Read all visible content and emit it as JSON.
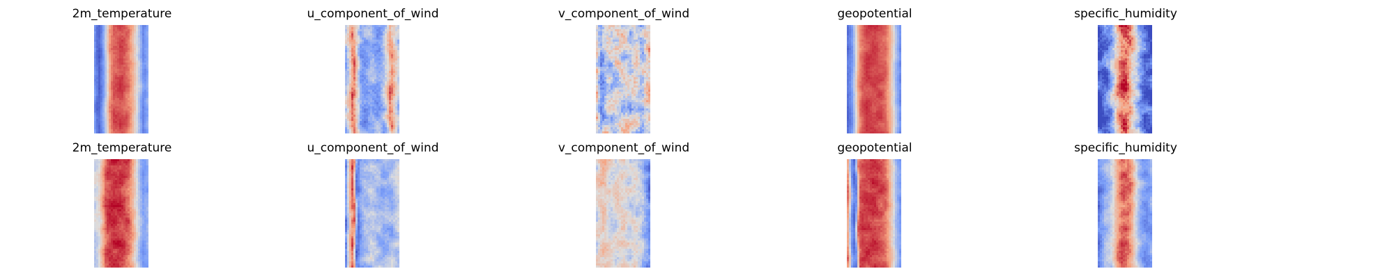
{
  "chart_data": [
    {
      "type": "heatmap",
      "title": "2m_temperature",
      "colormap": "coolwarm",
      "axes": "off",
      "row": 1,
      "profile": [
        0.22,
        0.05,
        0.18,
        0.45,
        0.78,
        0.88,
        0.88,
        0.9,
        0.86,
        0.82,
        0.72,
        0.55,
        0.38,
        0.18,
        0.3
      ],
      "noise": 0.06,
      "wave": 0.12
    },
    {
      "type": "heatmap",
      "title": "u_component_of_wind",
      "colormap": "coolwarm",
      "axes": "off",
      "row": 1,
      "profile": [
        0.4,
        0.62,
        0.86,
        0.55,
        0.3,
        0.28,
        0.35,
        0.38,
        0.32,
        0.3,
        0.35,
        0.5,
        0.78,
        0.6,
        0.4
      ],
      "noise": 0.16,
      "wave": 0.2
    },
    {
      "type": "heatmap",
      "title": "v_component_of_wind",
      "colormap": "coolwarm",
      "axes": "off",
      "row": 1,
      "profile": [
        0.55,
        0.3,
        0.45,
        0.5,
        0.42,
        0.48,
        0.5,
        0.46,
        0.5,
        0.44,
        0.52,
        0.48,
        0.35,
        0.55,
        0.65
      ],
      "noise": 0.24,
      "wave": 0.08
    },
    {
      "type": "heatmap",
      "title": "geopotential",
      "colormap": "coolwarm",
      "axes": "off",
      "row": 1,
      "profile": [
        0.12,
        0.2,
        0.45,
        0.78,
        0.86,
        0.9,
        0.9,
        0.9,
        0.9,
        0.88,
        0.85,
        0.75,
        0.55,
        0.35,
        0.2
      ],
      "noise": 0.05,
      "wave": 0.1
    },
    {
      "type": "heatmap",
      "title": "specific_humidity",
      "colormap": "coolwarm",
      "axes": "off",
      "row": 1,
      "profile": [
        0.05,
        0.1,
        0.15,
        0.25,
        0.45,
        0.7,
        0.85,
        0.88,
        0.82,
        0.65,
        0.45,
        0.28,
        0.15,
        0.08,
        0.05
      ],
      "noise": 0.2,
      "wave": 0.1
    },
    {
      "type": "heatmap",
      "title": "2m_temperature",
      "colormap": "coolwarm",
      "axes": "off",
      "row": 2,
      "profile": [
        0.45,
        0.5,
        0.7,
        0.88,
        0.92,
        0.94,
        0.93,
        0.92,
        0.9,
        0.86,
        0.72,
        0.52,
        0.35,
        0.22,
        0.3
      ],
      "noise": 0.08,
      "wave": 0.14
    },
    {
      "type": "heatmap",
      "title": "u_component_of_wind",
      "colormap": "coolwarm",
      "axes": "off",
      "row": 2,
      "profile": [
        0.2,
        0.65,
        0.9,
        0.12,
        0.28,
        0.35,
        0.38,
        0.42,
        0.4,
        0.38,
        0.3,
        0.32,
        0.35,
        0.4,
        0.45
      ],
      "noise": 0.12,
      "wave": 0.12
    },
    {
      "type": "heatmap",
      "title": "v_component_of_wind",
      "colormap": "coolwarm",
      "axes": "off",
      "row": 2,
      "profile": [
        0.5,
        0.58,
        0.62,
        0.55,
        0.5,
        0.48,
        0.5,
        0.52,
        0.5,
        0.48,
        0.5,
        0.45,
        0.42,
        0.3,
        0.2
      ],
      "noise": 0.14,
      "wave": 0.06
    },
    {
      "type": "heatmap",
      "title": "geopotential",
      "colormap": "coolwarm",
      "axes": "off",
      "row": 2,
      "profile": [
        0.8,
        0.25,
        0.1,
        0.85,
        0.9,
        0.92,
        0.92,
        0.92,
        0.9,
        0.88,
        0.84,
        0.72,
        0.55,
        0.35,
        0.25
      ],
      "noise": 0.07,
      "wave": 0.12
    },
    {
      "type": "heatmap",
      "title": "specific_humidity",
      "colormap": "coolwarm",
      "axes": "off",
      "row": 2,
      "profile": [
        0.15,
        0.25,
        0.35,
        0.4,
        0.55,
        0.75,
        0.85,
        0.84,
        0.8,
        0.68,
        0.5,
        0.35,
        0.25,
        0.22,
        0.28
      ],
      "noise": 0.1,
      "wave": 0.12
    }
  ]
}
